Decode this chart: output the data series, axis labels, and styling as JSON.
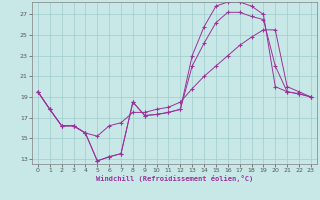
{
  "xlabel": "Windchill (Refroidissement éolien,°C)",
  "bg_color": "#c8e8e8",
  "grid_color": "#a0cccc",
  "line_color": "#993399",
  "xlim_min": -0.5,
  "xlim_max": 23.5,
  "ylim_min": 12.5,
  "ylim_max": 28.2,
  "xticks": [
    0,
    1,
    2,
    3,
    4,
    5,
    6,
    7,
    8,
    9,
    10,
    11,
    12,
    13,
    14,
    15,
    16,
    17,
    18,
    19,
    20,
    21,
    22,
    23
  ],
  "yticks": [
    13,
    15,
    17,
    19,
    21,
    23,
    25,
    27
  ],
  "curve1_x": [
    0,
    1,
    2,
    3,
    4,
    5,
    6,
    7,
    8,
    9,
    10,
    11,
    12,
    13,
    14,
    15,
    16,
    17,
    18,
    19,
    20,
    21,
    22,
    23
  ],
  "curve1_y": [
    19.5,
    17.8,
    16.2,
    16.2,
    15.5,
    12.8,
    13.2,
    13.5,
    18.5,
    17.2,
    17.3,
    17.5,
    17.8,
    23.0,
    25.8,
    27.8,
    28.2,
    28.2,
    27.8,
    27.0,
    20.0,
    19.5,
    19.3,
    19.0
  ],
  "curve2_x": [
    0,
    1,
    2,
    3,
    4,
    5,
    6,
    7,
    8,
    9,
    10,
    11,
    12,
    13,
    14,
    15,
    16,
    17,
    18,
    19,
    20,
    21,
    22,
    23
  ],
  "curve2_y": [
    19.5,
    17.8,
    16.2,
    16.2,
    15.5,
    12.8,
    13.2,
    13.5,
    18.5,
    17.2,
    17.3,
    17.5,
    17.8,
    22.0,
    24.2,
    26.2,
    27.2,
    27.2,
    26.8,
    26.5,
    22.0,
    19.5,
    19.3,
    19.0
  ],
  "curve3_x": [
    0,
    1,
    2,
    3,
    4,
    5,
    6,
    7,
    8,
    9,
    10,
    11,
    12,
    13,
    14,
    15,
    16,
    17,
    18,
    19,
    20,
    21,
    22,
    23
  ],
  "curve3_y": [
    19.5,
    17.8,
    16.2,
    16.2,
    15.5,
    15.2,
    16.2,
    16.5,
    17.5,
    17.5,
    17.8,
    18.0,
    18.5,
    19.8,
    21.0,
    22.0,
    23.0,
    24.0,
    24.8,
    25.5,
    25.5,
    20.0,
    19.5,
    19.0
  ]
}
